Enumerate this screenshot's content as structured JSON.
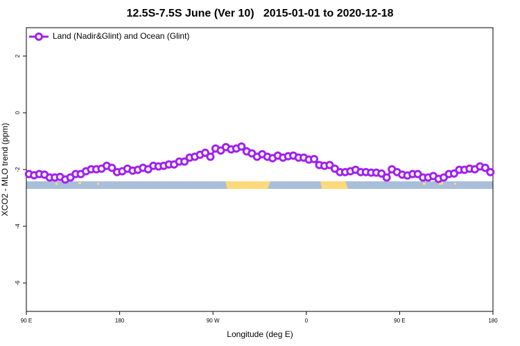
{
  "chart_data": {
    "type": "line",
    "title": "12.5S-7.5S June (Ver 10)   2015-01-01 to 2020-12-18",
    "x_label": "Longitude (deg E)",
    "y_label": "XCO2 - MLO trend (ppm)",
    "xlim": [
      90,
      540
    ],
    "xticks": [
      {
        "value": 90,
        "label": "90 E"
      },
      180,
      {
        "value": 270,
        "label": "90 W"
      },
      {
        "value": 360,
        "label": "0"
      },
      {
        "value": 450,
        "label": "90 E"
      },
      {
        "value": 540,
        "label": "180"
      }
    ],
    "ylim": [
      -7,
      3
    ],
    "yticks": [
      2,
      0,
      -2,
      -4,
      -6
    ],
    "legend": "top-left",
    "x": [
      92.5,
      97.5,
      102.5,
      107.5,
      112.5,
      117.5,
      122.5,
      127.5,
      132.5,
      137.5,
      142.5,
      147.5,
      152.5,
      157.5,
      162.5,
      167.5,
      172.5,
      177.5,
      182.5,
      187.5,
      192.5,
      197.5,
      202.5,
      207.5,
      212.5,
      217.5,
      222.5,
      227.5,
      232.5,
      237.5,
      242.5,
      247.5,
      252.5,
      257.5,
      262.5,
      267.5,
      272.5,
      277.5,
      282.5,
      287.5,
      292.5,
      297.5,
      302.5,
      307.5,
      312.5,
      317.5,
      322.5,
      327.5,
      332.5,
      337.5,
      342.5,
      347.5,
      352.5,
      357.5,
      362.5,
      367.5,
      372.5,
      377.5,
      382.5,
      387.5,
      392.5,
      397.5,
      402.5,
      407.5,
      412.5,
      417.5,
      422.5,
      427.5,
      432.5,
      437.5,
      442.5,
      447.5,
      452.5,
      457.5,
      462.5,
      467.5,
      472.5,
      477.5,
      482.5,
      487.5,
      492.5,
      497.5,
      502.5,
      507.5,
      512.5,
      517.5,
      522.5,
      527.5,
      532.5,
      537.5
    ],
    "series": [
      {
        "name": "Land (Nadir&Glint) and Ocean (Glint)",
        "color": "#a020f0",
        "values": [
          -2.16,
          -2.2,
          -2.16,
          -2.18,
          -2.28,
          -2.28,
          -2.26,
          -2.35,
          -2.28,
          -2.16,
          -2.16,
          -2.06,
          -1.99,
          -1.99,
          -1.97,
          -1.87,
          -1.94,
          -2.09,
          -2.06,
          -1.97,
          -2.04,
          -2.01,
          -1.94,
          -1.99,
          -1.87,
          -1.89,
          -1.87,
          -1.82,
          -1.82,
          -1.72,
          -1.72,
          -1.58,
          -1.55,
          -1.48,
          -1.41,
          -1.55,
          -1.26,
          -1.33,
          -1.21,
          -1.29,
          -1.26,
          -1.19,
          -1.36,
          -1.43,
          -1.55,
          -1.46,
          -1.55,
          -1.6,
          -1.51,
          -1.58,
          -1.53,
          -1.51,
          -1.58,
          -1.58,
          -1.65,
          -1.63,
          -1.84,
          -1.87,
          -1.84,
          -1.97,
          -2.09,
          -2.09,
          -2.06,
          -2.01,
          -2.09,
          -2.09,
          -2.11,
          -2.11,
          -2.14,
          -2.28,
          -1.99,
          -2.09,
          -2.18,
          -2.21,
          -2.16,
          -2.16,
          -2.28,
          -2.28,
          -2.23,
          -2.33,
          -2.28,
          -2.16,
          -2.14,
          -2.01,
          -2.01,
          -1.97,
          -1.99,
          -1.89,
          -1.94,
          -2.09
        ]
      }
    ]
  }
}
